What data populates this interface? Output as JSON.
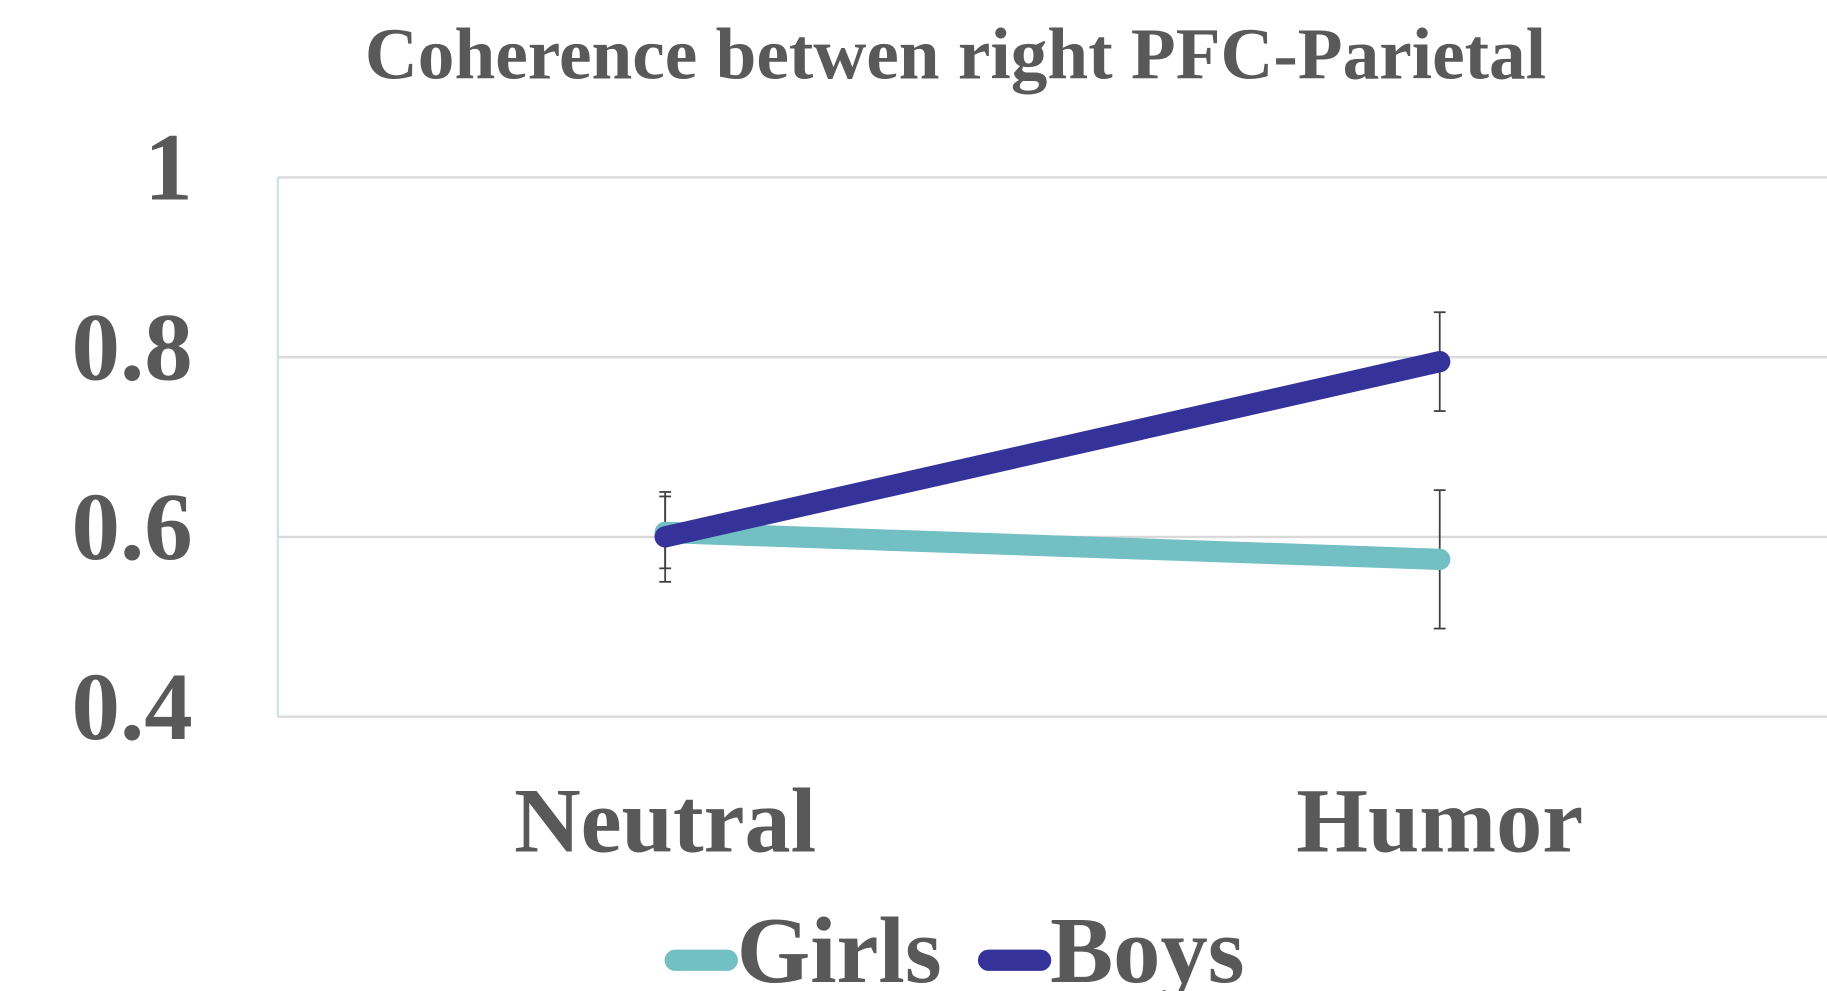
{
  "chart_data": {
    "type": "line",
    "title": "Coherence betwen right PFC-Parietal",
    "categories": [
      "Neutral",
      "Humor"
    ],
    "series": [
      {
        "name": "Girls",
        "color": "#72bfc4",
        "values": [
          0.605,
          0.575
        ],
        "errors": [
          0.04,
          0.077
        ]
      },
      {
        "name": "Boys",
        "color": "#35339a",
        "values": [
          0.6,
          0.795
        ],
        "errors": [
          0.05,
          0.055
        ]
      }
    ],
    "ylim": [
      0.4,
      1
    ],
    "yticks": [
      0.4,
      0.6,
      0.8,
      1
    ],
    "grid": true,
    "legend": "bottom"
  }
}
